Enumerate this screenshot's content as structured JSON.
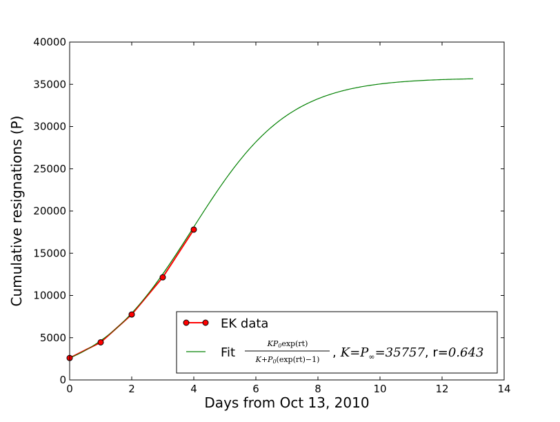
{
  "chart_data": {
    "type": "line",
    "title": "",
    "xlabel": "Days from Oct 13, 2010",
    "ylabel": "Cumulative resignations (P)",
    "xlim": [
      0,
      14
    ],
    "ylim": [
      0,
      40000
    ],
    "x_ticks": [
      "0",
      "2",
      "4",
      "6",
      "8",
      "10",
      "12",
      "14"
    ],
    "y_ticks": [
      "0",
      "5000",
      "10000",
      "15000",
      "20000",
      "25000",
      "30000",
      "35000",
      "40000"
    ],
    "grid": false,
    "legend_position": "lower-right",
    "series": [
      {
        "name": "EK data",
        "color": "#ff0000",
        "marker": "circle",
        "x": [
          0,
          1,
          2,
          3,
          4
        ],
        "y": [
          2600,
          4450,
          7750,
          12150,
          17800
        ]
      },
      {
        "name": "Fit",
        "color": "#008000",
        "model": {
          "K": 35757,
          "r": 0.643,
          "P0": 2600,
          "x_start": 0,
          "x_end": 13
        }
      }
    ],
    "legend": {
      "data_label": "EK data",
      "fit_prefix": "Fit",
      "fit_numerator": "KP",
      "fit_numerator_sub": "0",
      "fit_numerator_tail": "exp(rt)",
      "fit_denominator": "K+P",
      "fit_denominator_sub": "0",
      "fit_denominator_tail": "(exp(rt)−1)",
      "fit_comma": ",",
      "fit_k_expr": "K",
      "fit_eq": "=",
      "fit_p": "P",
      "fit_p_sub": "∞",
      "fit_k_value": "=35757",
      "fit_r_prefix": ", r=",
      "fit_r_value": "0.643"
    }
  }
}
